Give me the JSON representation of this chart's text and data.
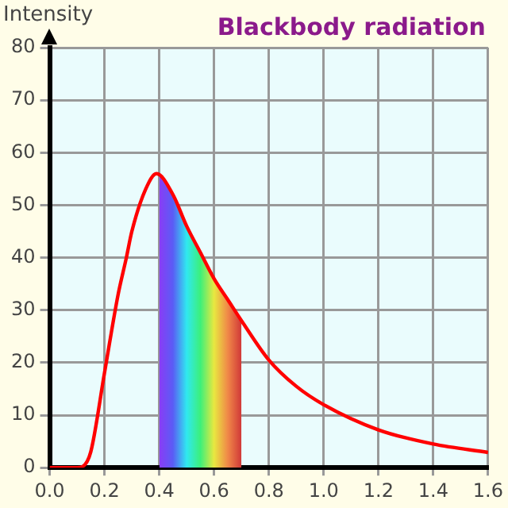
{
  "chart_data": {
    "type": "line",
    "title": "Blackbody radiation",
    "ylabel": "Intensity",
    "xlim": [
      0,
      1.6
    ],
    "xticks": [
      {
        "value": 0,
        "label": "0.0"
      },
      0.2,
      0.4,
      0.6,
      0.8,
      {
        "value": 1,
        "label": "1.0"
      },
      1.2,
      1.4,
      1.6
    ],
    "ylim": [
      0,
      80
    ],
    "yticks": [
      0,
      10,
      20,
      30,
      40,
      50,
      60,
      70,
      80
    ],
    "grid": true,
    "legend": false,
    "marker": "none",
    "line_style": "solid",
    "series": [
      {
        "type": "area",
        "colors": [
          "#8a3cf5",
          "#5a5cf5",
          "#30e8f0",
          "#3cf07a",
          "#e8e840",
          "#f08848",
          "#d03838"
        ],
        "x": [
          0.4,
          0.45,
          0.5,
          0.55,
          0.6,
          0.65,
          0.7
        ],
        "values": [
          56,
          52,
          46,
          41,
          36,
          32,
          28
        ]
      },
      {
        "type": "line",
        "color": "#ff0000",
        "x": [
          0,
          0.1,
          0.12,
          0.15,
          0.2,
          0.25,
          0.28,
          0.3,
          0.35,
          0.39,
          0.45,
          0.5,
          0.55,
          0.6,
          0.65,
          0.7,
          0.8,
          0.9,
          1.0,
          1.2,
          1.4,
          1.6
        ],
        "values": [
          0,
          0,
          0.2,
          3,
          18,
          33,
          40,
          45,
          53,
          56,
          52,
          46,
          41,
          36,
          32,
          28,
          20.5,
          15.5,
          12,
          7.2,
          4.5,
          2.9
        ]
      }
    ]
  }
}
